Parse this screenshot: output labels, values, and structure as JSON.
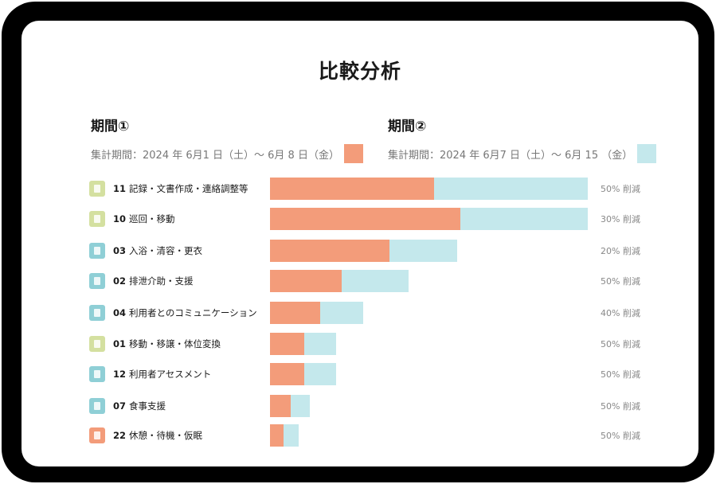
{
  "title": "比較分析",
  "period1": {
    "label": "期間①",
    "range": "集計期間：2024 年 6月1 日（土）〜 6月 8 日（金）",
    "color": "#f39c7a"
  },
  "period2": {
    "label": "期間②",
    "range": "集計期間：2024 年 6月7 日（土）〜 6月 15 （金）",
    "color": "#c4e8ec"
  },
  "chart_data": {
    "type": "bar",
    "orientation": "horizontal",
    "stacked": true,
    "categories": [
      {
        "code": "11",
        "name": "記録・文書作成・連絡調整等",
        "icon": "document-icon",
        "icon_color": "#d4e0a0"
      },
      {
        "code": "10",
        "name": "巡回・移動",
        "icon": "walking-person-icon",
        "icon_color": "#d4e0a0"
      },
      {
        "code": "03",
        "name": "入浴・清容・更衣",
        "icon": "bathtub-icon",
        "icon_color": "#8fcfd6"
      },
      {
        "code": "02",
        "name": "排泄介助・支援",
        "icon": "toilet-icon",
        "icon_color": "#8fcfd6"
      },
      {
        "code": "04",
        "name": "利用者とのコミュニケーション",
        "icon": "conversation-icon",
        "icon_color": "#8fcfd6"
      },
      {
        "code": "01",
        "name": "移動・移譲・体位変換",
        "icon": "transfer-icon",
        "icon_color": "#d4e0a0"
      },
      {
        "code": "12",
        "name": "利用者アセスメント",
        "icon": "assessment-icon",
        "icon_color": "#8fcfd6"
      },
      {
        "code": "07",
        "name": "食事支援",
        "icon": "meal-icon",
        "icon_color": "#8fcfd6"
      },
      {
        "code": "22",
        "name": "休憩・待機・仮眠",
        "icon": "sofa-icon",
        "icon_color": "#f39c7a"
      }
    ],
    "series": [
      {
        "name": "期間①",
        "values": [
          206,
          239,
          150,
          90,
          63,
          43,
          43,
          26,
          17
        ]
      },
      {
        "name": "期間②",
        "values": [
          193,
          160,
          85,
          84,
          54,
          40,
          40,
          24,
          19
        ]
      }
    ],
    "annotations": [
      "50% 削減",
      "30% 削減",
      "20% 削減",
      "50% 削減",
      "40% 削減",
      "50% 削減",
      "50% 削減",
      "50% 削減",
      "50% 削減"
    ],
    "xlim": [
      0,
      400
    ]
  }
}
